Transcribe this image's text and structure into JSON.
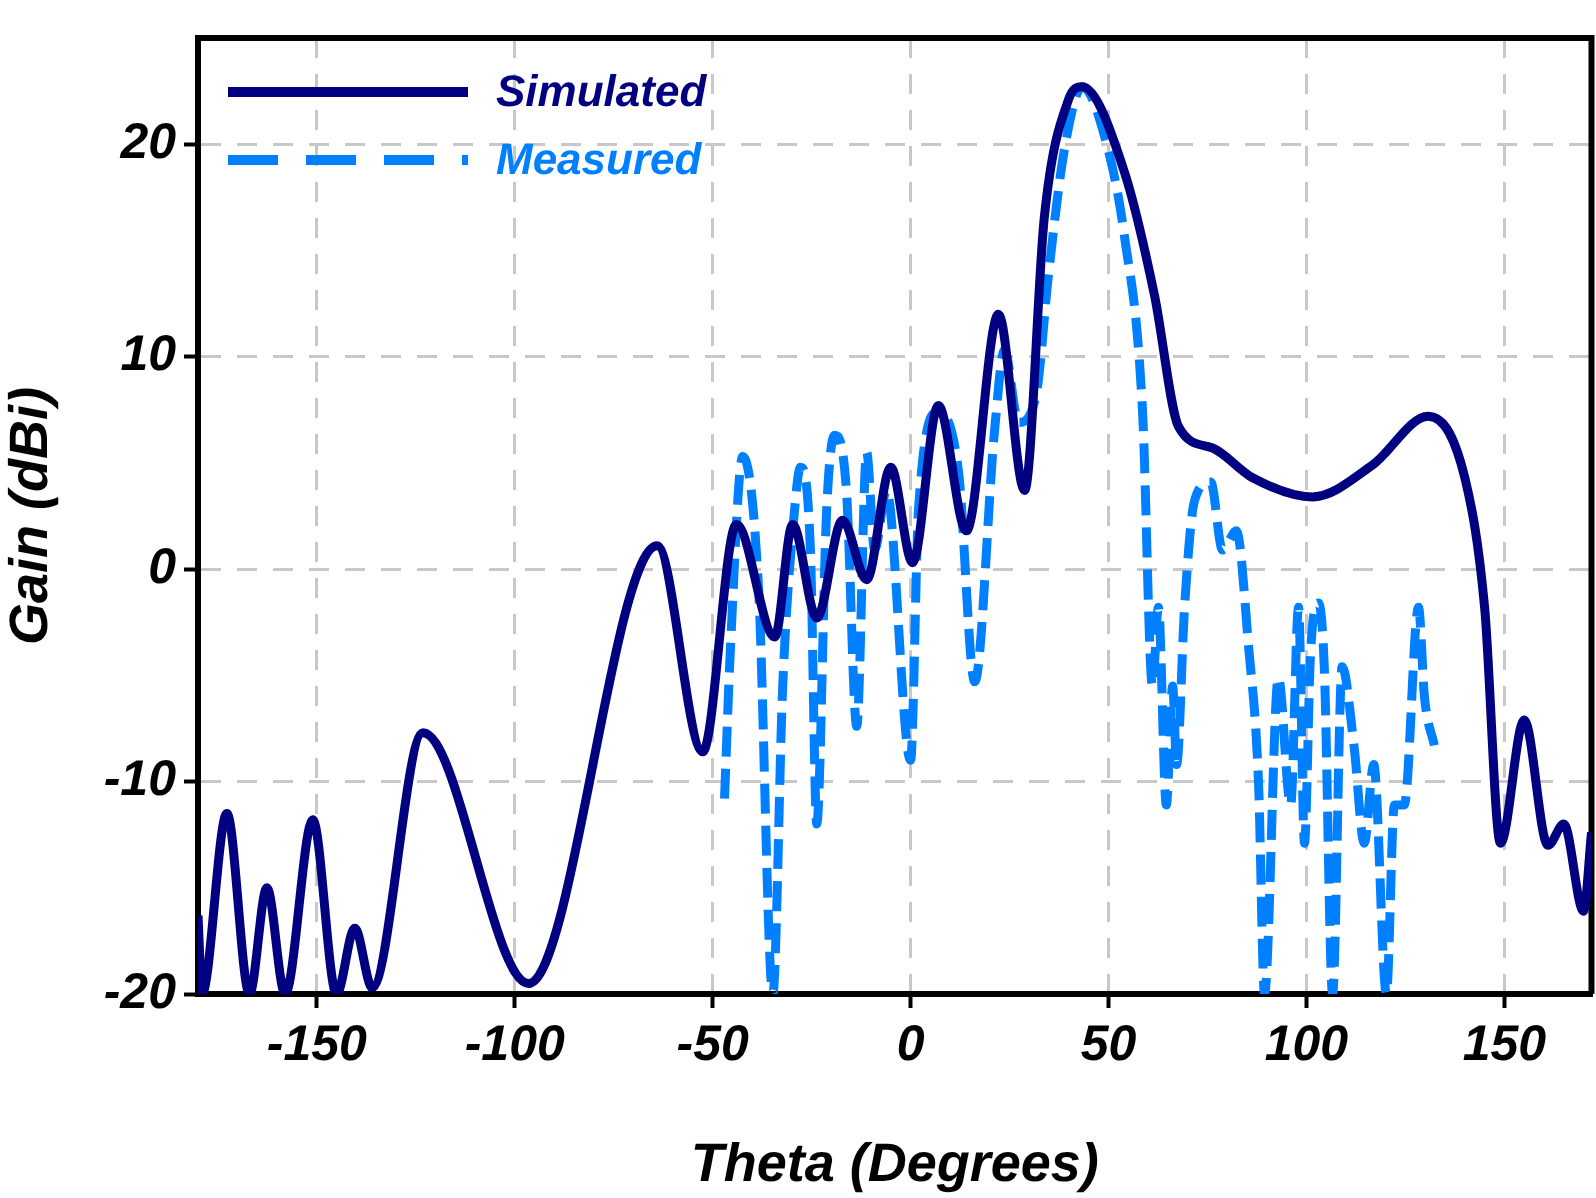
{
  "chart_data": {
    "type": "line",
    "xlabel": "Theta (Degrees)",
    "ylabel": "Gain (dBi)",
    "xlim": [
      -180,
      172
    ],
    "ylim": [
      -20,
      25
    ],
    "xticks": [
      -150,
      -100,
      -50,
      0,
      50,
      100,
      150
    ],
    "yticks": [
      -20,
      -10,
      0,
      10,
      20
    ],
    "grid": true,
    "legend": "top left",
    "marker": "none",
    "series": [
      {
        "name": "Simulated",
        "color": "#000080",
        "line_style": "solid",
        "x": [
          -180,
          -179,
          -172.7,
          -167,
          -162.6,
          -158,
          -151,
          -145,
          -140.4,
          -136,
          -123.2,
          -96.5,
          -64,
          -52.5,
          -44,
          -34.3,
          -29.8,
          -23.7,
          -17.2,
          -11.1,
          -5,
          0.5,
          7,
          14.1,
          22.2,
          28.8,
          33.8,
          39.9,
          43.3,
          54,
          61.6,
          67.7,
          76.3,
          86.4,
          101.5,
          116.7,
          130.8,
          140,
          145,
          149,
          155,
          161,
          165,
          170,
          172
        ],
        "values": [
          -16.3,
          -20,
          -11.5,
          -20,
          -15,
          -20,
          -11.8,
          -20,
          -16.9,
          -19.7,
          -7.7,
          -19.5,
          1.1,
          -8.6,
          2.1,
          -3.2,
          2.1,
          -2.3,
          2.3,
          -0.5,
          4.8,
          0.3,
          7.7,
          1.8,
          12,
          3.7,
          16.6,
          22.1,
          22.7,
          18.7,
          12.9,
          6.7,
          5.7,
          4.3,
          3.4,
          4.9,
          7.2,
          4.3,
          -1.8,
          -12.9,
          -7.1,
          -13,
          -12,
          -16.1,
          -12.4
        ]
      },
      {
        "name": "Measured",
        "color": "#0080ff",
        "line_style": "dashed",
        "x": [
          -47,
          -45.5,
          -42.4,
          -38.4,
          -34.8,
          -32.3,
          -29.3,
          -27.8,
          -25.3,
          -23.7,
          -21.2,
          -19.2,
          -16.2,
          -13.6,
          -11.1,
          -9.1,
          -6.1,
          0,
          2,
          7,
          12.1,
          16.2,
          21.2,
          23.7,
          27.3,
          31.8,
          34.8,
          38.9,
          43.4,
          48.5,
          54,
          58.6,
          61.1,
          62.6,
          64.6,
          66.2,
          67.2,
          69.2,
          71.7,
          75.8,
          78.8,
          82.3,
          85.4,
          87.9,
          89.4,
          92.9,
          96,
          98,
          99.5,
          101,
          103,
          104.5,
          106.6,
          109,
          112,
          114.6,
          117,
          120.2,
          122.2,
          124.7,
          128.3,
          129.8,
          132.3
        ],
        "values": [
          -10.8,
          -3.7,
          5.3,
          -0.9,
          -20,
          -5.5,
          2.8,
          4.8,
          0.9,
          -12,
          2.8,
          6.3,
          3.7,
          -7.4,
          5.5,
          0.9,
          3.7,
          -9,
          2.8,
          7.4,
          4.6,
          -5.3,
          6.5,
          10.3,
          6.9,
          8.3,
          13.8,
          19.8,
          22.7,
          20.7,
          15.7,
          7.4,
          -5.5,
          -1.8,
          -11.1,
          -5.5,
          -9.2,
          -1.8,
          3.2,
          4.1,
          0.9,
          1.8,
          -3.7,
          -10.1,
          -20,
          -5.1,
          -11.1,
          -1.8,
          -12.9,
          -4.1,
          -1.6,
          -4.6,
          -20,
          -4.6,
          -8.3,
          -12.9,
          -9.2,
          -20,
          -11.1,
          -11.1,
          -1.8,
          -6,
          -8.3
        ]
      }
    ]
  }
}
